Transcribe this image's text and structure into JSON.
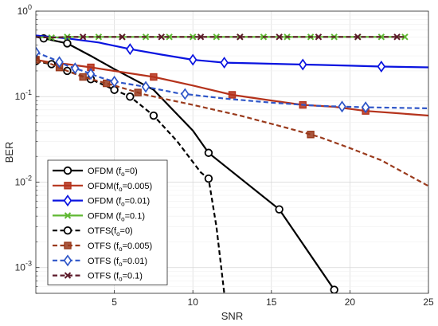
{
  "chart_data": {
    "type": "line",
    "title": "",
    "xlabel": "SNR",
    "ylabel": "BER",
    "xlim": [
      0,
      25
    ],
    "ylim": [
      0.0005,
      1
    ],
    "yscale": "log",
    "grid": true,
    "legend_position": "bottom-left",
    "x_ticks": [
      5,
      10,
      15,
      20,
      25
    ],
    "y_ticks": [
      {
        "value": 0.001,
        "base": "10",
        "exp": "-3"
      },
      {
        "value": 0.01,
        "base": "10",
        "exp": "-2"
      },
      {
        "value": 0.1,
        "base": "10",
        "exp": "-1"
      },
      {
        "value": 1,
        "base": "10",
        "exp": "0"
      }
    ],
    "series": [
      {
        "legend": "OFDM (f",
        "sub": "o",
        "rest": "=0)",
        "color": "#000000",
        "dash": false,
        "marker": "circle",
        "x": [
          0,
          0.5,
          2,
          3.5,
          5,
          7.5,
          10,
          11,
          15.5,
          19
        ],
        "y": [
          0.5,
          0.48,
          0.42,
          0.3,
          0.21,
          0.12,
          0.04,
          0.022,
          0.0048,
          0.00055
        ],
        "mx": [
          0.5,
          2,
          11,
          15.5,
          19
        ]
      },
      {
        "legend": "OFDM(f",
        "sub": "o",
        "rest": "=0.005)",
        "color": "#b5331c",
        "dash": false,
        "marker": "square",
        "x": [
          0,
          1,
          2,
          3.5,
          5,
          7.5,
          10,
          12.5,
          15,
          17,
          19,
          21,
          23,
          25
        ],
        "y": [
          0.27,
          0.25,
          0.24,
          0.22,
          0.2,
          0.17,
          0.135,
          0.105,
          0.09,
          0.08,
          0.076,
          0.068,
          0.064,
          0.06
        ],
        "mx": [
          0,
          3.5,
          7.5,
          12.5,
          17,
          21
        ]
      },
      {
        "legend": "OFDM (f",
        "sub": "o",
        "rest": "=0.01)",
        "color": "#0a14e0",
        "dash": false,
        "marker": "diamond",
        "x": [
          0,
          2,
          4,
          6,
          8,
          10,
          12,
          14,
          16,
          18,
          20,
          22,
          25
        ],
        "y": [
          0.52,
          0.48,
          0.43,
          0.36,
          0.31,
          0.27,
          0.25,
          0.245,
          0.24,
          0.235,
          0.23,
          0.225,
          0.22
        ],
        "mx": [
          6,
          10,
          12,
          17,
          22
        ]
      },
      {
        "legend": "OFDM (f",
        "sub": "o",
        "rest": "=0.1)",
        "color": "#5fb832",
        "dash": false,
        "marker": "x",
        "x": [
          0,
          1,
          2,
          5,
          10,
          15,
          20,
          23.5
        ],
        "y": [
          0.5,
          0.49,
          0.5,
          0.5,
          0.5,
          0.5,
          0.5,
          0.5
        ],
        "mx": [
          1,
          2,
          4,
          5.5,
          7,
          8.5,
          10,
          11.5,
          13,
          14.5,
          16,
          17.5,
          19,
          20.5,
          22,
          23.5
        ]
      },
      {
        "legend": "OTFS(f",
        "sub": "o",
        "rest": "=0)",
        "color": "#000000",
        "dash": true,
        "marker": "circle",
        "x": [
          0,
          1,
          2,
          3.5,
          5,
          6,
          7.5,
          9,
          10.5,
          11,
          11.5,
          12
        ],
        "y": [
          0.26,
          0.24,
          0.2,
          0.16,
          0.12,
          0.1,
          0.06,
          0.03,
          0.013,
          0.011,
          0.003,
          0.0005
        ],
        "mx": [
          0,
          1,
          2,
          3.5,
          5,
          6,
          7.5,
          11
        ]
      },
      {
        "legend": "OTFS (f",
        "sub": "o",
        "rest": "=0.005)",
        "color": "#9a3a1c",
        "dash": true,
        "marker": "square",
        "x": [
          0,
          1,
          2,
          3,
          5,
          7,
          10,
          13,
          16,
          18,
          20,
          22,
          25
        ],
        "y": [
          0.27,
          0.24,
          0.2,
          0.17,
          0.135,
          0.105,
          0.08,
          0.06,
          0.043,
          0.034,
          0.025,
          0.018,
          0.009
        ],
        "mx": [
          0,
          1.5,
          3,
          4.5,
          6.5,
          17.5
        ]
      },
      {
        "legend": "OTFS (f",
        "sub": "o",
        "rest": "=0.01)",
        "color": "#2f56c8",
        "dash": true,
        "marker": "diamond",
        "x": [
          0,
          1,
          2,
          3,
          4,
          5,
          7,
          9,
          12,
          15,
          18,
          21,
          25
        ],
        "y": [
          0.33,
          0.28,
          0.23,
          0.2,
          0.17,
          0.15,
          0.13,
          0.11,
          0.095,
          0.085,
          0.078,
          0.075,
          0.073
        ],
        "mx": [
          0,
          1.5,
          2.5,
          3.5,
          5,
          7,
          9.5,
          19.5,
          21
        ]
      },
      {
        "legend": "OTFS (f",
        "sub": "o",
        "rest": "=0.1)",
        "color": "#5c1a2a",
        "dash": true,
        "marker": "x",
        "x": [
          0,
          1,
          2,
          5,
          10,
          15,
          20,
          23.5
        ],
        "y": [
          0.5,
          0.49,
          0.5,
          0.5,
          0.5,
          0.5,
          0.5,
          0.5
        ],
        "mx": [
          3,
          5.5,
          8,
          10.5,
          13,
          15.5,
          18,
          20.5,
          23
        ]
      }
    ]
  }
}
